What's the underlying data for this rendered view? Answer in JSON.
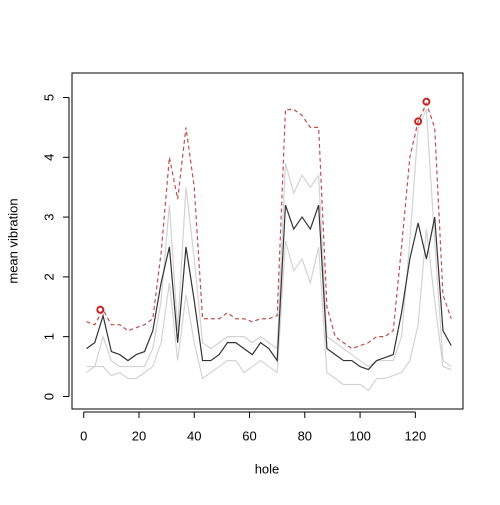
{
  "chart_data": {
    "type": "line",
    "x_label": "hole",
    "y_label": "mean vibration",
    "x": [
      1,
      4,
      7,
      10,
      13,
      16,
      19,
      22,
      25,
      28,
      31,
      34,
      37,
      40,
      43,
      46,
      49,
      52,
      55,
      58,
      61,
      64,
      67,
      70,
      73,
      76,
      79,
      82,
      85,
      88,
      91,
      94,
      97,
      100,
      103,
      106,
      109,
      112,
      115,
      118,
      121,
      124,
      127,
      130,
      133
    ],
    "series": [
      {
        "color": "#d3d3d3",
        "dash": false,
        "values": [
          0.4,
          0.5,
          0.5,
          0.35,
          0.4,
          0.3,
          0.3,
          0.4,
          0.5,
          0.9,
          1.9,
          0.6,
          1.7,
          0.9,
          0.3,
          0.4,
          0.5,
          0.6,
          0.6,
          0.4,
          0.5,
          0.6,
          0.5,
          0.4,
          2.6,
          2.1,
          2.3,
          1.9,
          2.5,
          0.4,
          0.3,
          0.2,
          0.2,
          0.2,
          0.1,
          0.3,
          0.3,
          0.35,
          0.4,
          0.6,
          1.2,
          2.8,
          1.6,
          0.5,
          0.45
        ]
      },
      {
        "color": "#d3d3d3",
        "dash": false,
        "values": [
          0.5,
          0.5,
          1.0,
          0.6,
          0.5,
          0.5,
          0.5,
          0.5,
          0.8,
          1.6,
          3.2,
          1.1,
          3.5,
          2.3,
          0.9,
          0.8,
          0.9,
          1.0,
          1.0,
          1.0,
          0.9,
          1.0,
          0.9,
          0.8,
          3.9,
          3.4,
          3.7,
          3.5,
          3.7,
          1.0,
          0.9,
          0.8,
          0.7,
          0.6,
          0.5,
          0.6,
          0.6,
          0.6,
          1.0,
          2.6,
          4.5,
          4.8,
          2.6,
          0.6,
          0.5
        ]
      },
      {
        "color": "#333333",
        "dash": false,
        "values": [
          0.8,
          0.9,
          1.35,
          0.75,
          0.7,
          0.6,
          0.7,
          0.75,
          1.1,
          1.9,
          2.5,
          0.9,
          2.5,
          1.6,
          0.6,
          0.6,
          0.7,
          0.9,
          0.9,
          0.8,
          0.7,
          0.9,
          0.8,
          0.6,
          3.2,
          2.8,
          3.0,
          2.8,
          3.2,
          0.8,
          0.7,
          0.6,
          0.6,
          0.5,
          0.45,
          0.6,
          0.65,
          0.7,
          1.4,
          2.3,
          2.9,
          2.3,
          3.0,
          1.1,
          0.85
        ]
      },
      {
        "color": "#c0504d",
        "dash": true,
        "values": [
          1.25,
          1.2,
          1.45,
          1.2,
          1.2,
          1.1,
          1.15,
          1.2,
          1.3,
          2.4,
          4.0,
          3.3,
          4.5,
          3.5,
          1.3,
          1.3,
          1.3,
          1.4,
          1.3,
          1.3,
          1.25,
          1.3,
          1.3,
          1.35,
          4.8,
          4.8,
          4.7,
          4.5,
          4.5,
          1.5,
          1.0,
          0.9,
          0.8,
          0.85,
          0.9,
          1.0,
          1.0,
          1.1,
          2.5,
          4.0,
          4.6,
          4.9,
          4.5,
          1.7,
          1.3
        ]
      }
    ],
    "highlights": {
      "color": "#cc2222",
      "x": [
        6,
        121,
        124
      ],
      "y": [
        1.45,
        4.6,
        4.93
      ]
    },
    "xlim": [
      -4.24,
      137.24
    ],
    "ylim": [
      -0.21,
      5.41
    ],
    "xticks": [
      0,
      20,
      40,
      60,
      80,
      100,
      120
    ],
    "yticks": [
      0,
      1,
      2,
      3,
      4,
      5
    ]
  }
}
